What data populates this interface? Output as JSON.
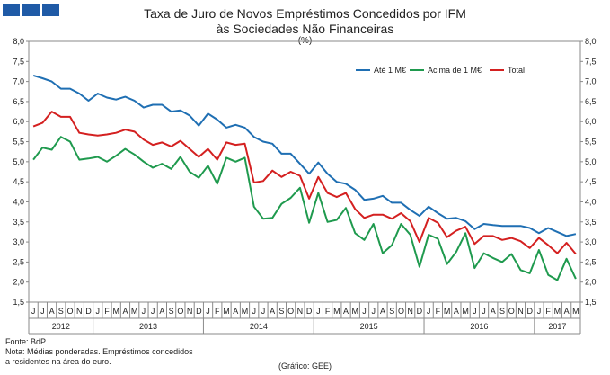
{
  "header": {
    "title_line1": "Taxa de Juro de Novos Empréstimos Concedidos por IFM",
    "title_line2": "às Sociedades Não Financeiras",
    "unit": "(%)"
  },
  "footer": {
    "source": "Fonte: BdP",
    "note_line1": "Nota: Médias ponderadas. Empréstimos concedidos",
    "note_line2": "a residentes na área do euro.",
    "credit": "(Gráfico: GEE)"
  },
  "chart_data": {
    "type": "line",
    "title": "Taxa de Juro de Novos Empréstimos Concedidos por IFM às Sociedades Não Financeiras",
    "ylabel": "(%)",
    "ylim": [
      1.5,
      8.0
    ],
    "yticks": [
      "1,5",
      "2,0",
      "2,5",
      "3,0",
      "3,5",
      "4,0",
      "4,5",
      "5,0",
      "5,5",
      "6,0",
      "6,5",
      "7,0",
      "7,5",
      "8,0"
    ],
    "month_labels": [
      "J",
      "J",
      "A",
      "S",
      "O",
      "N",
      "D",
      "J",
      "F",
      "M",
      "A",
      "M",
      "J",
      "J",
      "A",
      "S",
      "O",
      "N",
      "D",
      "J",
      "F",
      "M",
      "A",
      "M",
      "J",
      "J",
      "A",
      "S",
      "O",
      "N",
      "D",
      "J",
      "F",
      "M",
      "A",
      "M",
      "J",
      "J",
      "A",
      "S",
      "O",
      "N",
      "D",
      "J",
      "F",
      "M",
      "A",
      "M",
      "J",
      "J",
      "A",
      "S",
      "O",
      "N",
      "D",
      "J",
      "F",
      "M",
      "A",
      "M"
    ],
    "years": [
      {
        "label": "2012",
        "start": 0,
        "count": 7
      },
      {
        "label": "2013",
        "start": 7,
        "count": 12
      },
      {
        "label": "2014",
        "start": 19,
        "count": 12
      },
      {
        "label": "2015",
        "start": 31,
        "count": 12
      },
      {
        "label": "2016",
        "start": 43,
        "count": 12
      },
      {
        "label": "2017",
        "start": 55,
        "count": 5
      }
    ],
    "legend_position": "top-right",
    "series": [
      {
        "name": "Até 1 M€",
        "color": "#1f6fb3",
        "values": [
          7.15,
          7.08,
          7.0,
          6.82,
          6.82,
          6.7,
          6.52,
          6.7,
          6.6,
          6.55,
          6.62,
          6.52,
          6.35,
          6.42,
          6.42,
          6.25,
          6.28,
          6.15,
          5.9,
          6.2,
          6.05,
          5.85,
          5.92,
          5.85,
          5.62,
          5.5,
          5.45,
          5.2,
          5.2,
          4.95,
          4.7,
          4.98,
          4.7,
          4.5,
          4.45,
          4.3,
          4.05,
          4.08,
          4.15,
          3.98,
          3.98,
          3.8,
          3.65,
          3.88,
          3.72,
          3.58,
          3.6,
          3.52,
          3.32,
          3.45,
          3.42,
          3.4,
          3.4,
          3.4,
          3.35,
          3.22,
          3.35,
          3.25,
          3.15,
          3.2
        ]
      },
      {
        "name": "Acima de 1 M€",
        "color": "#1f9a4e",
        "values": [
          5.05,
          5.35,
          5.3,
          5.62,
          5.5,
          5.05,
          5.08,
          5.12,
          5.0,
          5.15,
          5.32,
          5.18,
          5.0,
          4.85,
          4.95,
          4.82,
          5.12,
          4.75,
          4.6,
          4.9,
          4.45,
          5.1,
          5.0,
          5.1,
          3.88,
          3.58,
          3.6,
          3.95,
          4.1,
          4.35,
          3.48,
          4.22,
          3.5,
          3.55,
          3.85,
          3.22,
          3.05,
          3.45,
          2.72,
          2.92,
          3.45,
          3.18,
          2.38,
          3.18,
          3.08,
          2.45,
          2.75,
          3.22,
          2.35,
          2.72,
          2.6,
          2.5,
          2.7,
          2.3,
          2.22,
          2.8,
          2.18,
          2.05,
          2.58,
          2.08
        ]
      },
      {
        "name": "Total",
        "color": "#d42020",
        "values": [
          5.88,
          5.97,
          6.25,
          6.12,
          6.12,
          5.72,
          5.68,
          5.65,
          5.68,
          5.72,
          5.8,
          5.75,
          5.55,
          5.42,
          5.48,
          5.38,
          5.52,
          5.32,
          5.12,
          5.32,
          5.05,
          5.48,
          5.42,
          5.45,
          4.48,
          4.52,
          4.78,
          4.62,
          4.75,
          4.65,
          4.08,
          4.62,
          4.22,
          4.12,
          4.22,
          3.82,
          3.6,
          3.68,
          3.68,
          3.58,
          3.72,
          3.52,
          3.0,
          3.6,
          3.48,
          3.12,
          3.28,
          3.38,
          2.95,
          3.15,
          3.15,
          3.05,
          3.1,
          3.02,
          2.85,
          3.1,
          2.92,
          2.72,
          2.98,
          2.7
        ]
      }
    ]
  }
}
